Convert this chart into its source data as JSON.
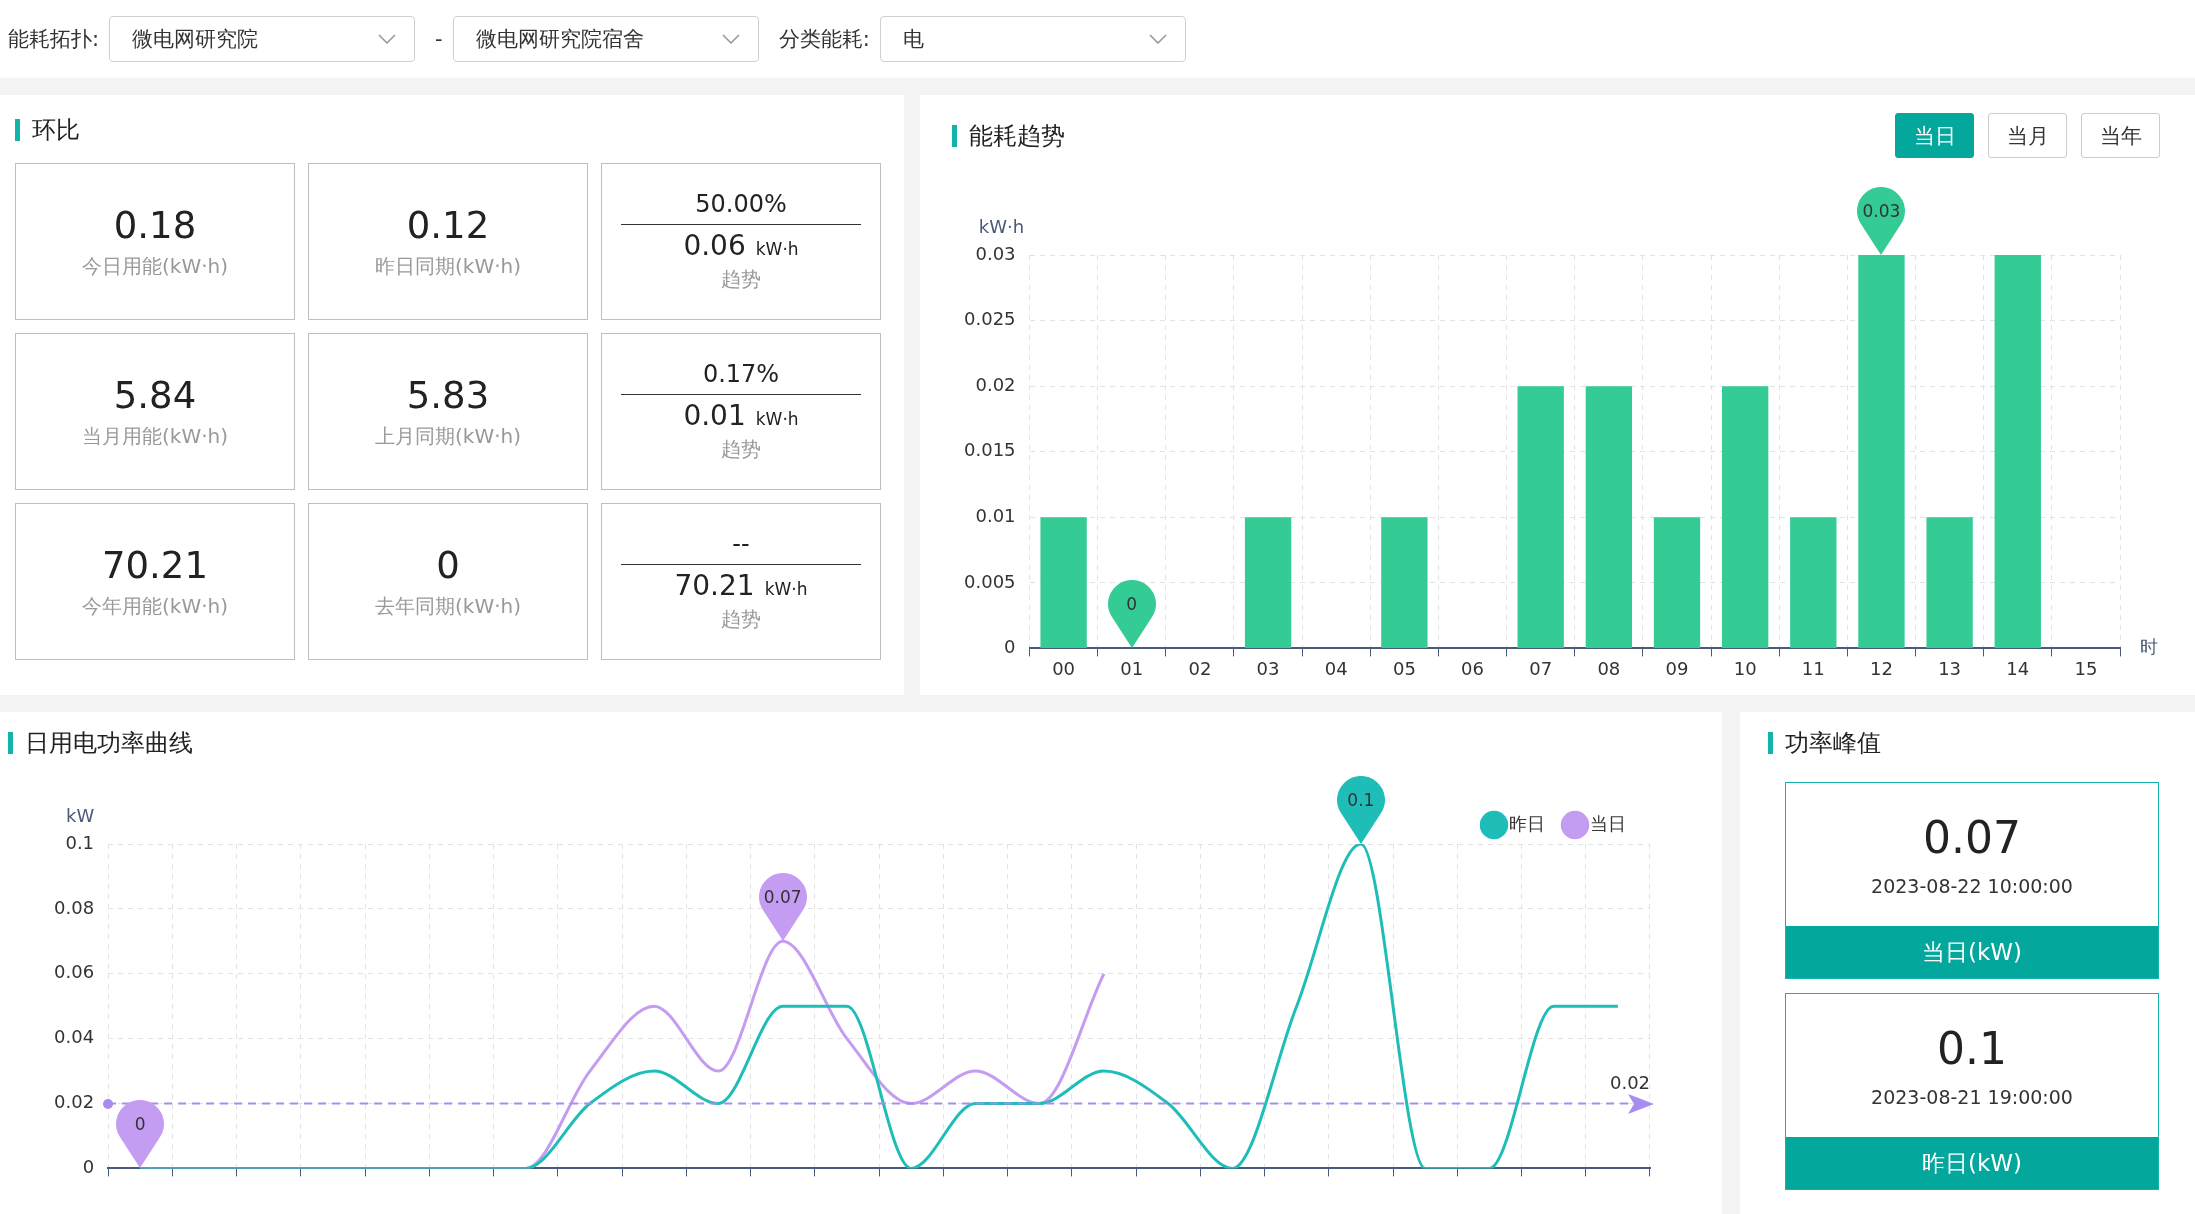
{
  "chart_data": [
    {
      "type": "other",
      "annotations": [
        "能耗拓扑:",
        "微电网研究院",
        "-",
        "微电网研究院宿舍",
        "分类能耗:",
        "电"
      ]
    },
    {
      "type": "other",
      "title": "环比",
      "annotations": [
        "0.18",
        "今日用能(kW·h)",
        "0.12",
        "昨日同期(kW·h)",
        "50.00%",
        "0.06",
        "kW·h",
        "趋势",
        "5.84",
        "当月用能(kW·h)",
        "5.83",
        "上月同期(kW·h)",
        "0.17%",
        "0.01",
        "kW·h",
        "趋势",
        "70.21",
        "今年用能(kW·h)",
        "0",
        "去年同期(kW·h)",
        "--",
        "70.21",
        "kW·h",
        "趋势"
      ]
    },
    {
      "type": "bar",
      "title": "能耗趋势",
      "categories": [
        "00",
        "01",
        "02",
        "03",
        "04",
        "05",
        "06",
        "07",
        "08",
        "09",
        "10",
        "11",
        "12",
        "13",
        "14",
        "15"
      ],
      "values": [
        0.01,
        0,
        0,
        0.01,
        0,
        0.01,
        0,
        0.02,
        0.02,
        0.01,
        0.02,
        0.01,
        0.03,
        0.01,
        0.03,
        0
      ],
      "color": "#34cb95",
      "ylabel": "kW·h",
      "xlabel": "时",
      "ylim": [
        0,
        0.03
      ],
      "yticks": [
        0,
        0.005,
        0.01,
        0.015,
        0.02,
        0.025,
        0.03
      ],
      "grid": true,
      "legend": false,
      "annotations": [
        {
          "text": "0",
          "x": "01",
          "y": 0
        },
        {
          "text": "0.03",
          "x": "12",
          "y": 0.03
        },
        "当日",
        "当月",
        "当年"
      ]
    },
    {
      "type": "line",
      "title": "日用电功率曲线",
      "categories": [
        null,
        null,
        null,
        null,
        null,
        null,
        null,
        null,
        null,
        null,
        null,
        null,
        null,
        null,
        null,
        null,
        null,
        null,
        null,
        null,
        null,
        null,
        null,
        null
      ],
      "ylabel": "kW",
      "ylim": [
        0,
        0.1
      ],
      "yticks": [
        0,
        0.02,
        0.04,
        0.06,
        0.08,
        0.1
      ],
      "grid": true,
      "legend": "top right",
      "series": [
        {
          "name": "昨日",
          "color": "#1fbdb8",
          "values": [
            0,
            0,
            0,
            0,
            0,
            0,
            0,
            0.02,
            0.03,
            0.02,
            0.05,
            0.05,
            0,
            0.02,
            0.02,
            0.03,
            0.02,
            0,
            0.05,
            0.1,
            0,
            0,
            0.05,
            0.05
          ]
        },
        {
          "name": "当日",
          "color": "#c49cf2",
          "values": [
            0,
            0,
            0,
            0,
            0,
            0,
            0,
            0.03,
            0.05,
            0.03,
            0.07,
            0.04,
            0.02,
            0.03,
            0.02,
            0.06,
            null,
            null,
            null,
            null,
            null,
            null,
            null,
            null
          ]
        }
      ],
      "ref_lines": [
        {
          "axis": "y",
          "value": 0.02,
          "label": "0.02",
          "color": "#a98cf0",
          "line_style": "dashed"
        }
      ],
      "annotations": [
        {
          "text": "0.1",
          "y": 0.1
        },
        {
          "text": "0.07",
          "y": 0.07
        },
        {
          "text": "0",
          "y": 0
        }
      ]
    },
    {
      "type": "other",
      "title": "功率峰值",
      "annotations": [
        "0.07",
        "2023-08-22 10:00:00",
        "当日(kW)",
        "0.1",
        "2023-08-21 19:00:00",
        "昨日(kW)"
      ]
    }
  ]
}
